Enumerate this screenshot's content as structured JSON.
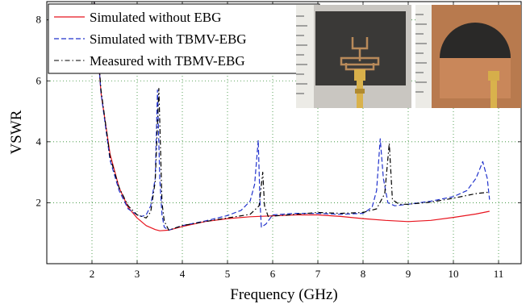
{
  "chart_data": {
    "type": "line",
    "xlabel": "Frequency (GHz)",
    "ylabel": "VSWR",
    "xlim": [
      1,
      11.5
    ],
    "ylim": [
      0,
      8.6
    ],
    "xticks": [
      2,
      3,
      4,
      5,
      6,
      7,
      8,
      9,
      10,
      11
    ],
    "yticks": [
      2,
      4,
      6,
      8
    ],
    "grid": true,
    "legend_position": "top-left",
    "series": [
      {
        "name": "Simulated without EBG",
        "color": "#e8141e",
        "style": "solid",
        "points": [
          [
            2.05,
            8.6
          ],
          [
            2.2,
            5.6
          ],
          [
            2.4,
            3.6
          ],
          [
            2.6,
            2.5
          ],
          [
            2.8,
            1.85
          ],
          [
            3.0,
            1.5
          ],
          [
            3.2,
            1.25
          ],
          [
            3.4,
            1.12
          ],
          [
            3.5,
            1.08
          ],
          [
            3.7,
            1.1
          ],
          [
            4.0,
            1.22
          ],
          [
            4.5,
            1.38
          ],
          [
            5.0,
            1.48
          ],
          [
            5.5,
            1.54
          ],
          [
            6.0,
            1.57
          ],
          [
            6.5,
            1.6
          ],
          [
            7.0,
            1.6
          ],
          [
            7.5,
            1.55
          ],
          [
            8.0,
            1.48
          ],
          [
            8.5,
            1.42
          ],
          [
            9.0,
            1.38
          ],
          [
            9.5,
            1.42
          ],
          [
            10.0,
            1.52
          ],
          [
            10.5,
            1.63
          ],
          [
            10.8,
            1.72
          ]
        ]
      },
      {
        "name": "Simulated with TBMV-EBG",
        "color": "#2233cc",
        "style": "dashed",
        "points": [
          [
            2.05,
            8.6
          ],
          [
            2.2,
            5.6
          ],
          [
            2.4,
            3.4
          ],
          [
            2.6,
            2.4
          ],
          [
            2.8,
            1.8
          ],
          [
            3.0,
            1.6
          ],
          [
            3.1,
            1.55
          ],
          [
            3.2,
            1.6
          ],
          [
            3.3,
            1.9
          ],
          [
            3.4,
            2.8
          ],
          [
            3.45,
            5.7
          ],
          [
            3.5,
            2.8
          ],
          [
            3.55,
            1.6
          ],
          [
            3.6,
            1.2
          ],
          [
            3.7,
            1.1
          ],
          [
            4.0,
            1.25
          ],
          [
            4.5,
            1.4
          ],
          [
            5.0,
            1.58
          ],
          [
            5.3,
            1.75
          ],
          [
            5.5,
            2.05
          ],
          [
            5.6,
            2.6
          ],
          [
            5.68,
            4.05
          ],
          [
            5.72,
            2.0
          ],
          [
            5.75,
            1.2
          ],
          [
            5.85,
            1.3
          ],
          [
            6.0,
            1.6
          ],
          [
            6.5,
            1.65
          ],
          [
            7.0,
            1.65
          ],
          [
            7.5,
            1.62
          ],
          [
            8.0,
            1.65
          ],
          [
            8.2,
            1.85
          ],
          [
            8.3,
            2.4
          ],
          [
            8.38,
            4.1
          ],
          [
            8.45,
            2.8
          ],
          [
            8.55,
            2.0
          ],
          [
            8.7,
            1.9
          ],
          [
            9.0,
            1.95
          ],
          [
            9.5,
            2.05
          ],
          [
            10.0,
            2.2
          ],
          [
            10.3,
            2.4
          ],
          [
            10.5,
            2.8
          ],
          [
            10.65,
            3.35
          ],
          [
            10.75,
            2.8
          ],
          [
            10.8,
            2.1
          ]
        ]
      },
      {
        "name": "Measured with TBMV-EBG",
        "color": "#000000",
        "style": "dashdot",
        "points": [
          [
            2.05,
            8.6
          ],
          [
            2.2,
            5.7
          ],
          [
            2.4,
            3.5
          ],
          [
            2.6,
            2.5
          ],
          [
            2.8,
            1.9
          ],
          [
            3.0,
            1.6
          ],
          [
            3.2,
            1.5
          ],
          [
            3.3,
            1.7
          ],
          [
            3.4,
            2.7
          ],
          [
            3.48,
            5.75
          ],
          [
            3.55,
            2.0
          ],
          [
            3.6,
            1.4
          ],
          [
            3.7,
            1.1
          ],
          [
            4.0,
            1.25
          ],
          [
            4.5,
            1.38
          ],
          [
            5.0,
            1.5
          ],
          [
            5.5,
            1.62
          ],
          [
            5.7,
            1.9
          ],
          [
            5.78,
            3.0
          ],
          [
            5.82,
            1.9
          ],
          [
            5.9,
            1.55
          ],
          [
            6.5,
            1.62
          ],
          [
            7.0,
            1.68
          ],
          [
            7.5,
            1.65
          ],
          [
            8.0,
            1.68
          ],
          [
            8.3,
            1.8
          ],
          [
            8.48,
            2.3
          ],
          [
            8.58,
            3.95
          ],
          [
            8.65,
            2.1
          ],
          [
            8.8,
            1.95
          ],
          [
            9.0,
            1.95
          ],
          [
            9.5,
            2.02
          ],
          [
            10.0,
            2.15
          ],
          [
            10.5,
            2.3
          ],
          [
            10.8,
            2.35
          ]
        ]
      }
    ]
  },
  "photos": [
    {
      "name": "antenna-front-photo"
    },
    {
      "name": "antenna-back-photo"
    }
  ]
}
